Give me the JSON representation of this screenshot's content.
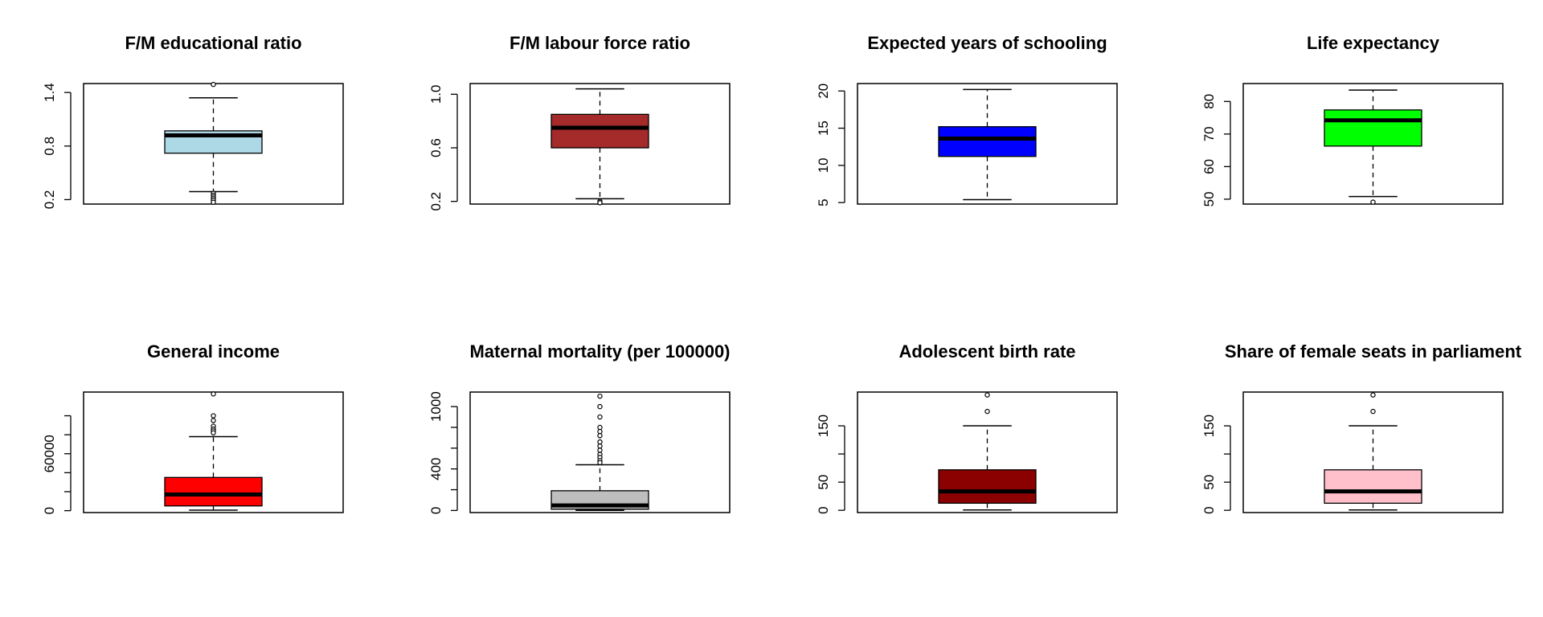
{
  "chart_data": [
    {
      "type": "box",
      "title": "F/M educational ratio",
      "ylim": [
        0.15,
        1.5
      ],
      "yticks": [
        0.2,
        0.8,
        1.4
      ],
      "ytick_labels": [
        "0.2",
        "0.8",
        "1.4"
      ],
      "fill": "#add8e6",
      "stats": {
        "min": 0.29,
        "q1": 0.72,
        "median": 0.92,
        "q3": 0.97,
        "max": 1.34
      },
      "outliers": [
        1.49,
        0.27,
        0.25,
        0.23,
        0.21,
        0.19,
        0.17
      ]
    },
    {
      "type": "box",
      "title": "F/M labour force ratio",
      "ylim": [
        0.18,
        1.08
      ],
      "yticks": [
        0.2,
        0.6,
        1.0
      ],
      "ytick_labels": [
        "0.2",
        "0.6",
        "1.0"
      ],
      "fill": "#a52a2a",
      "stats": {
        "min": 0.22,
        "q1": 0.6,
        "median": 0.75,
        "q3": 0.85,
        "max": 1.04
      },
      "outliers": [
        0.2,
        0.19,
        0.19
      ]
    },
    {
      "type": "box",
      "title": "Expected years of schooling",
      "ylim": [
        4.8,
        21.0
      ],
      "yticks": [
        5,
        10,
        15,
        20
      ],
      "ytick_labels": [
        "5",
        "10",
        "15",
        "20"
      ],
      "fill": "#0000ff",
      "stats": {
        "min": 5.4,
        "q1": 11.2,
        "median": 13.6,
        "q3": 15.2,
        "max": 20.2
      },
      "outliers": []
    },
    {
      "type": "box",
      "title": "Life expectancy",
      "ylim": [
        48.5,
        85.5
      ],
      "yticks": [
        50,
        60,
        70,
        80
      ],
      "ytick_labels": [
        "50",
        "60",
        "70",
        "80"
      ],
      "fill": "#00ff00",
      "stats": {
        "min": 50.8,
        "q1": 66.3,
        "median": 74.2,
        "q3": 77.4,
        "max": 83.5
      },
      "outliers": [
        49.1
      ]
    },
    {
      "type": "box",
      "title": "General income",
      "ylim": [
        -2000,
        125000
      ],
      "yticks": [
        0,
        60000
      ],
      "ytick_labels": [
        "0",
        "60000"
      ],
      "minor_yticks": [
        20000,
        40000,
        80000,
        100000
      ],
      "fill": "#ff0000",
      "stats": {
        "min": 580,
        "q1": 5000,
        "median": 17000,
        "q3": 35000,
        "max": 78000
      },
      "outliers": [
        123000,
        100000,
        95000,
        89000,
        86000,
        84000,
        82000
      ]
    },
    {
      "type": "box",
      "title": "Maternal mortality (per 100000)",
      "ylim": [
        -20,
        1140
      ],
      "yticks": [
        0,
        400,
        1000
      ],
      "ytick_labels": [
        "0",
        "400",
        "1000"
      ],
      "minor_yticks": [
        200,
        600,
        800
      ],
      "fill": "#bebebe",
      "stats": {
        "min": 1,
        "q1": 12,
        "median": 49,
        "q3": 190,
        "max": 440
      },
      "outliers": [
        1100,
        1000,
        900,
        800,
        760,
        720,
        660,
        620,
        580,
        540,
        510,
        480,
        460
      ]
    },
    {
      "type": "box",
      "title": "Adolescent birth rate",
      "ylim": [
        -4,
        210
      ],
      "yticks": [
        0,
        50,
        150
      ],
      "ytick_labels": [
        "0",
        "50",
        "150"
      ],
      "minor_yticks": [
        100
      ],
      "fill": "#8b0000",
      "stats": {
        "min": 0.6,
        "q1": 12.6,
        "median": 33.6,
        "q3": 71.9,
        "max": 150
      },
      "outliers": [
        204.8,
        175.6
      ]
    },
    {
      "type": "box",
      "title": "Share of female seats in parliament",
      "ylim": [
        -4,
        210
      ],
      "yticks": [
        0,
        50,
        150
      ],
      "ytick_labels": [
        "0",
        "50",
        "150"
      ],
      "minor_yticks": [
        100
      ],
      "fill": "#ffc0cb",
      "stats": {
        "min": 0.6,
        "q1": 12.6,
        "median": 33.6,
        "q3": 71.9,
        "max": 150
      },
      "outliers": [
        204.8,
        175.6
      ]
    }
  ]
}
